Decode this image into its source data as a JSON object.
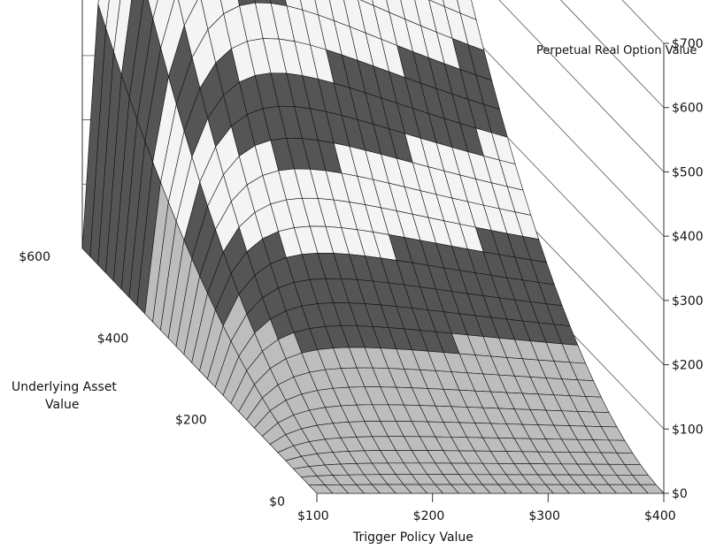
{
  "chart_data": {
    "type": "surface3d",
    "legend_entry": "Perpetual Real Option Value",
    "xlabel": "Trigger Policy Value",
    "ylabel": "Underlying Asset Value",
    "x": {
      "min": 100,
      "max": 400,
      "ticks": [
        100,
        200,
        300,
        400
      ],
      "tick_labels": [
        "$100",
        "$200",
        "$300",
        "$400"
      ]
    },
    "y": {
      "min": 0,
      "max": 600,
      "ticks": [
        0,
        200,
        400,
        600
      ],
      "tick_labels": [
        "$0",
        "$200",
        "$400",
        "$600"
      ]
    },
    "z": {
      "min": 0,
      "max": 700,
      "ticks": [
        0,
        100,
        200,
        300,
        400,
        500,
        600,
        700
      ],
      "tick_labels": [
        "$0",
        "$100",
        "$200",
        "$300",
        "$400",
        "$500",
        "$600",
        "$700"
      ]
    },
    "contour_band_width": 100,
    "band_colors": [
      "#bdbdbd",
      "#555555",
      "#f4f4f4",
      "#555555",
      "#f4f4f4",
      "#555555",
      "#bdbdbd"
    ],
    "grid_lines": true
  }
}
